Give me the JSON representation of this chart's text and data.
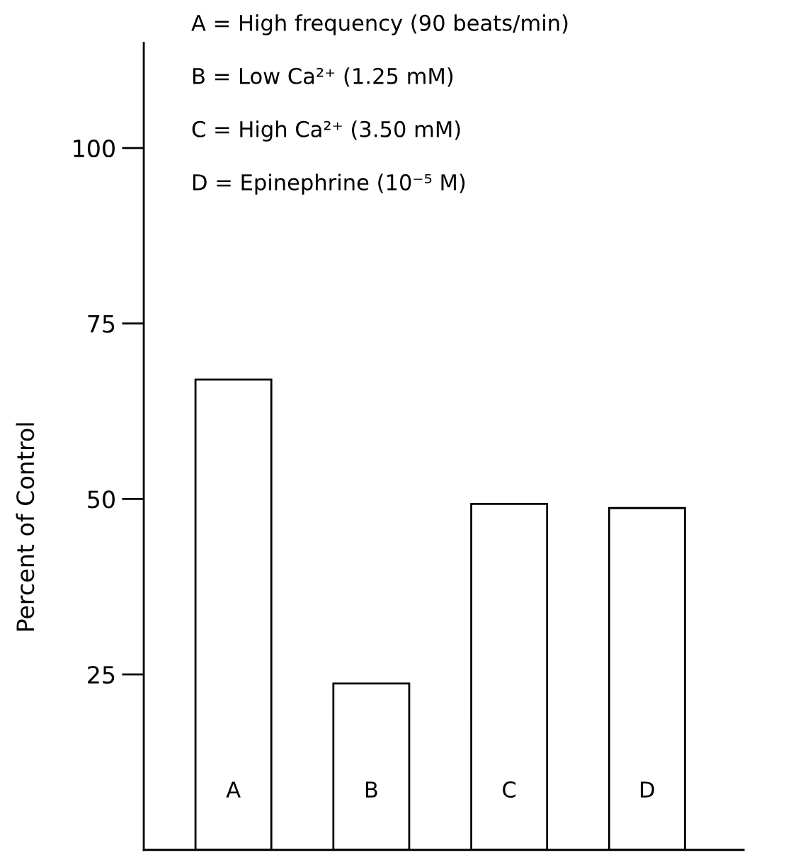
{
  "chart_data": {
    "type": "bar",
    "ylabel": "Percent of Control",
    "categories": [
      "A",
      "B",
      "C",
      "D"
    ],
    "values": [
      67,
      23.7,
      49.3,
      48.7
    ],
    "color": "#ffffff",
    "ylim": [
      0,
      115
    ],
    "yticks": [
      25,
      50,
      75,
      100
    ],
    "grid": false,
    "legend": false,
    "annotations": [
      "A = High frequency (90 beats/min)",
      "B = Low Ca²⁺ (1.25 mM)",
      "C = High Ca²⁺ (3.50 mM)",
      "D = Epinephrine (10⁻⁵ M)"
    ]
  }
}
